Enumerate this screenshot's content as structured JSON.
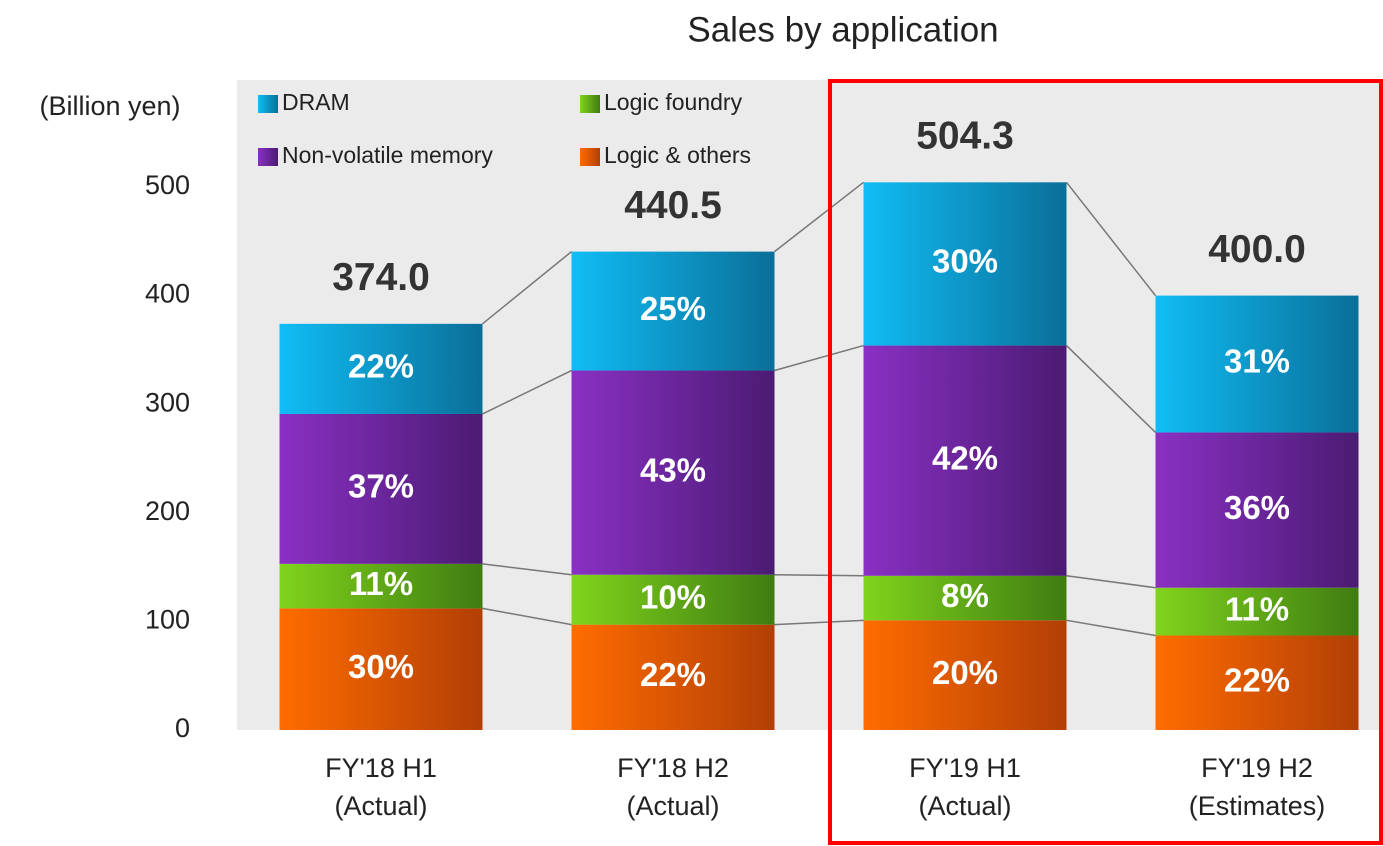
{
  "chart_data": {
    "type": "stacked_bar",
    "title": "Sales by application",
    "y_label": "(Billion yen)",
    "categories": [
      [
        "FY'18 H1",
        "(Actual)"
      ],
      [
        "FY'18 H2",
        "(Actual)"
      ],
      [
        "FY'19 H1",
        "(Actual)"
      ],
      [
        "FY'19 H2",
        "(Estimates)"
      ]
    ],
    "series": [
      {
        "name": "Logic & others",
        "color": "#ff6c00",
        "shade": "#b23f06",
        "values": [
          112,
          97,
          101,
          87
        ],
        "share_labels": [
          "30%",
          "22%",
          "20%",
          "22%"
        ]
      },
      {
        "name": "Logic foundry",
        "color": "#80d41c",
        "shade": "#3f7c12",
        "values": [
          41,
          46,
          41,
          44
        ],
        "share_labels": [
          "11%",
          "10%",
          "8%",
          "11%"
        ]
      },
      {
        "name": "Non-volatile memory",
        "color": "#8a30c4",
        "shade": "#4b1b72",
        "values": [
          138,
          188,
          212,
          143
        ],
        "share_labels": [
          "37%",
          "43%",
          "42%",
          "36%"
        ]
      },
      {
        "name": "DRAM",
        "color": "#10bdf5",
        "shade": "#0a6f98",
        "values": [
          83,
          109.5,
          150.3,
          126
        ],
        "share_labels": [
          "22%",
          "25%",
          "30%",
          "31%"
        ]
      }
    ],
    "totals": [
      374,
      440.5,
      504.3,
      400
    ],
    "total_labels": [
      "374.0",
      "440.5",
      "504.3",
      "400.0"
    ],
    "ylim": [
      0,
      500
    ],
    "yticks": [
      0,
      100,
      200,
      300,
      400,
      500
    ],
    "grid": false
  }
}
